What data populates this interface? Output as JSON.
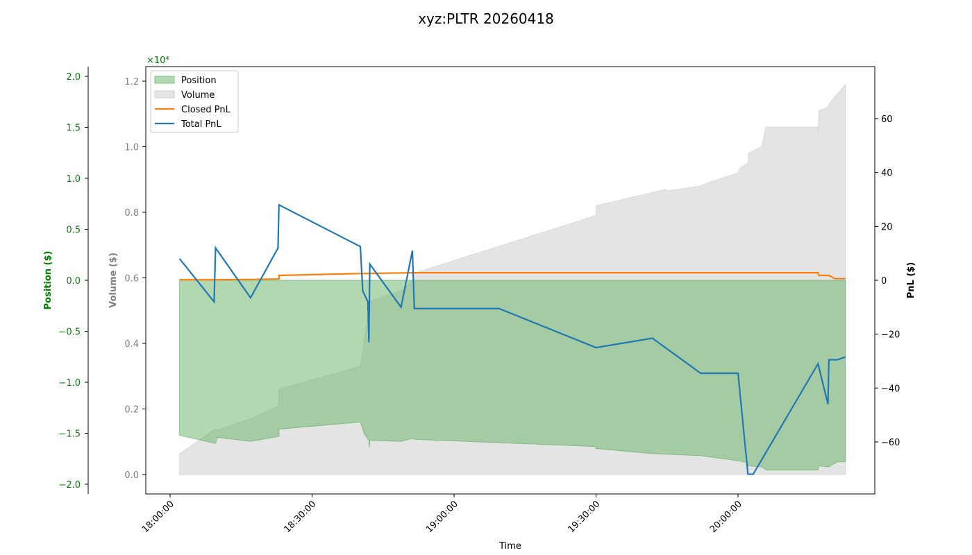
{
  "chart_data": {
    "type": "area+line",
    "title": "xyz:PLTR 20260418",
    "xlabel": "Time",
    "x_ticks": [
      "18:00:00",
      "18:30:00",
      "19:00:00",
      "19:30:00",
      "20:00:00"
    ],
    "x_tick_minutes": [
      0,
      30,
      60,
      90,
      120
    ],
    "axes": {
      "position": {
        "label": "Position ($)",
        "color": "#008000",
        "scale_note": "×10⁴",
        "ticks": [
          "2.0",
          "1.5",
          "1.0",
          "0.5",
          "0.0",
          "−0.5",
          "−1.0",
          "−1.5",
          "−2.0"
        ],
        "tick_values": [
          2.0,
          1.5,
          1.0,
          0.5,
          0.0,
          -0.5,
          -1.0,
          -1.5,
          -2.0
        ],
        "ylim": [
          -2.05,
          2.1
        ]
      },
      "volume": {
        "label": "Volume ($)",
        "color": "#808080",
        "ticks": [
          "1.2",
          "1.0",
          "0.8",
          "0.6",
          "0.4",
          "0.2",
          "0.0"
        ],
        "tick_values": [
          1.2,
          1.0,
          0.8,
          0.6,
          0.4,
          0.2,
          0.0
        ],
        "ylim": [
          -0.06,
          1.25
        ]
      },
      "pnl": {
        "label": "PnL ($)",
        "color": "#000000",
        "ticks": [
          "60",
          "40",
          "20",
          "0",
          "−20",
          "−40",
          "−60"
        ],
        "tick_values": [
          60,
          40,
          20,
          0,
          -20,
          -40,
          -60
        ],
        "ylim": [
          -79,
          79
        ]
      }
    },
    "legend": [
      {
        "label": "Position",
        "kind": "patch",
        "color": "#b2d8b2",
        "border": "#7fbf7f"
      },
      {
        "label": "Volume",
        "kind": "patch",
        "color": "#e4e4e4",
        "border": "#d0d0d0"
      },
      {
        "label": "Closed PnL",
        "kind": "line",
        "color": "#ff7f0e"
      },
      {
        "label": "Total PnL",
        "kind": "line",
        "color": "#1f77b4"
      }
    ],
    "series": [
      {
        "name": "Volume",
        "type": "area",
        "axis": "volume",
        "color": "#e4e4e4",
        "x_minutes": [
          2,
          9.6,
          9.9,
          17,
          23,
          23,
          40.2,
          42.3,
          48.8,
          51.2,
          51.8,
          90,
          90,
          104.8,
          104.8,
          112.1,
          113.6,
          120,
          120.4,
          122.1,
          122.2,
          125,
          125.9,
          136.9,
          136.9,
          137.1,
          138.9,
          139.2,
          142.7,
          142.7
        ],
        "values": [
          0.063,
          0.14,
          0.135,
          0.17,
          0.21,
          0.26,
          0.33,
          0.53,
          0.56,
          0.59,
          0.615,
          0.79,
          0.82,
          0.87,
          0.865,
          0.88,
          0.89,
          0.92,
          0.935,
          0.95,
          0.98,
          1.0,
          1.06,
          1.06,
          1.04,
          1.11,
          1.12,
          1.13,
          1.19,
          1.19
        ]
      },
      {
        "name": "Position",
        "type": "area",
        "axis": "position",
        "color": "#b2d8b2",
        "x_minutes": [
          2,
          9.6,
          9.9,
          17,
          23,
          23,
          40.2,
          41.1,
          42.0,
          42.1,
          42.2,
          48.8,
          51.2,
          51.8,
          90,
          90,
          101.9,
          112.1,
          120,
          122.1,
          122.2,
          125,
          125.9,
          136.9,
          137.1,
          139.2,
          141.0,
          142.7
        ],
        "values": [
          -1.52,
          -1.6,
          -1.54,
          -1.58,
          -1.53,
          -1.46,
          -1.39,
          -1.51,
          -1.57,
          -1.64,
          -1.57,
          -1.58,
          -1.55,
          -1.56,
          -1.63,
          -1.65,
          -1.7,
          -1.72,
          -1.77,
          -1.79,
          -1.82,
          -1.83,
          -1.86,
          -1.86,
          -1.82,
          -1.83,
          -1.78,
          -1.78
        ]
      },
      {
        "name": "Closed PnL",
        "type": "line",
        "axis": "pnl",
        "color": "#ff7f0e",
        "x_minutes": [
          2,
          9.6,
          17,
          23,
          23,
          40.2,
          51.8,
          136.9,
          137.1,
          139.2,
          140.5,
          142.7
        ],
        "values": [
          0.2,
          0.2,
          0.3,
          0.5,
          1.8,
          2.5,
          2.8,
          2.8,
          1.8,
          1.8,
          0.6,
          0.6
        ]
      },
      {
        "name": "Total PnL",
        "type": "line",
        "axis": "pnl",
        "color": "#1f77b4",
        "x_minutes": [
          2,
          9.3,
          9.6,
          17,
          22.8,
          23,
          40.2,
          40.7,
          41.8,
          42.0,
          42.2,
          48.8,
          51.2,
          51.6,
          51.8,
          69.5,
          90,
          101.9,
          112.1,
          120,
          122.1,
          123.2,
          136.9,
          139.0,
          139.2,
          141.0,
          142.7
        ],
        "values": [
          8,
          -8,
          12,
          -6.5,
          12,
          28,
          12.5,
          -4,
          -8,
          -23,
          6,
          -10,
          11,
          -10.5,
          -10.5,
          -10.5,
          -25,
          -21.5,
          -34.5,
          -34.5,
          -72,
          -72,
          -31,
          -46,
          -29.5,
          -29.5,
          -28.5
        ]
      }
    ]
  }
}
